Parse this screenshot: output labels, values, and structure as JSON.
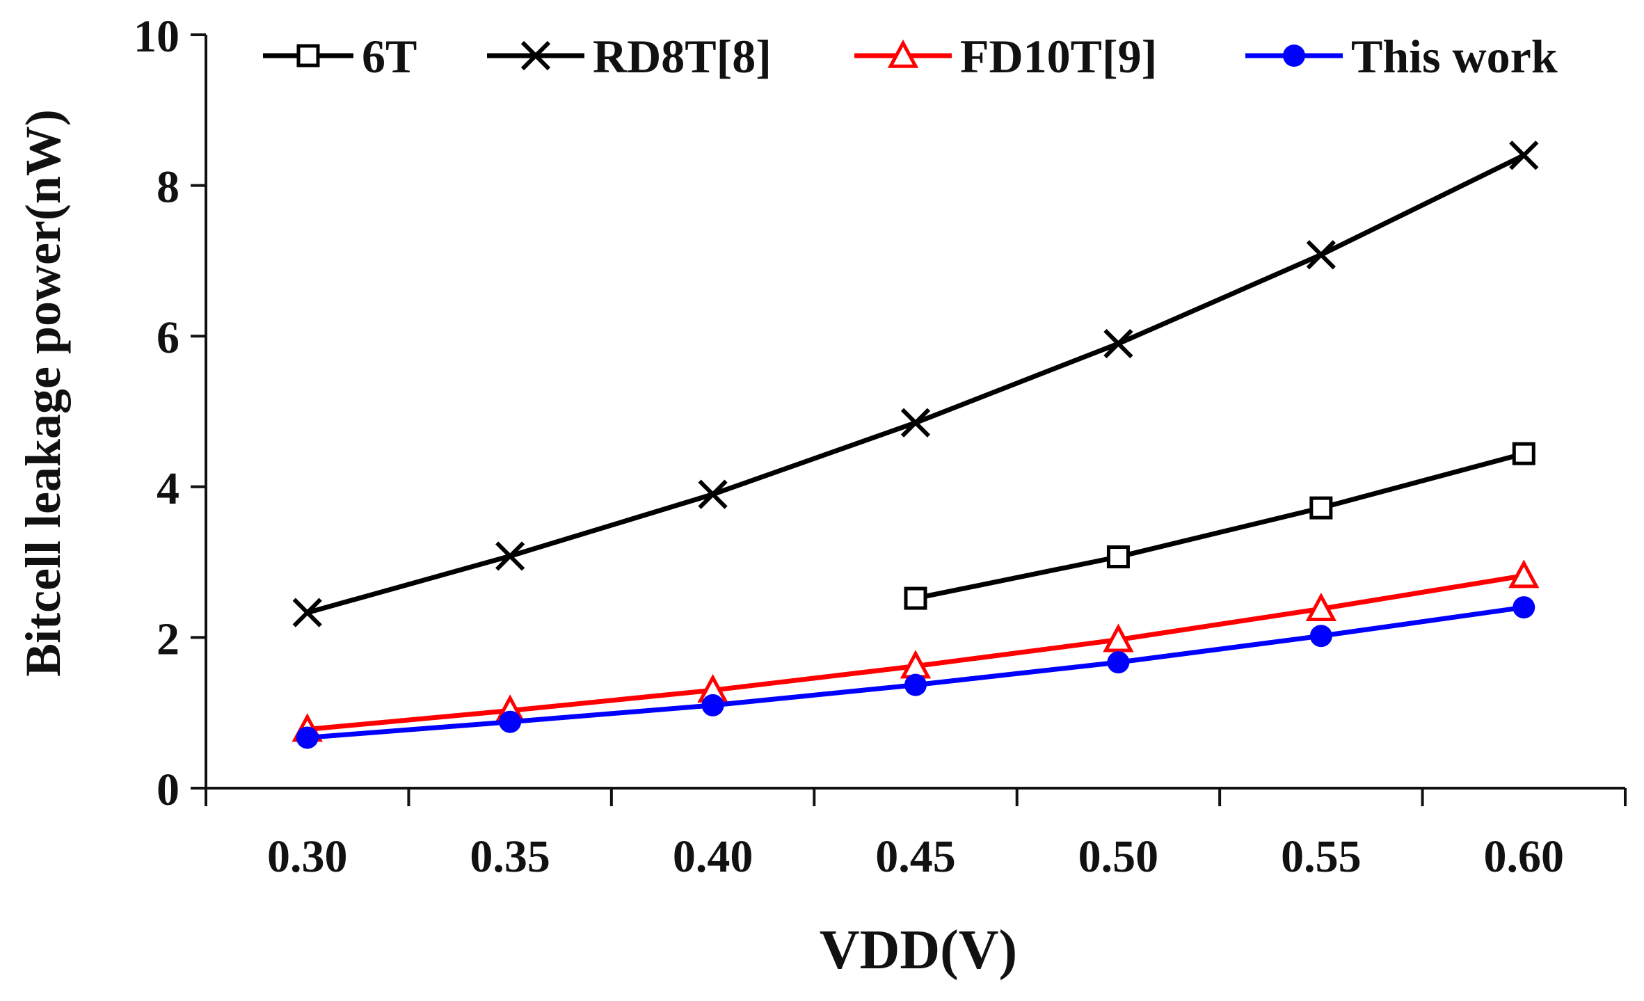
{
  "chart_data": {
    "type": "line",
    "title": "",
    "xlabel": "VDD(V)",
    "ylabel": "Bitcell leakage power(nW)",
    "x": [
      0.3,
      0.35,
      0.4,
      0.45,
      0.5,
      0.55,
      0.6
    ],
    "x_tick_labels": [
      "0.30",
      "0.35",
      "0.40",
      "0.45",
      "0.50",
      "0.55",
      "0.60"
    ],
    "xlim": [
      0.275,
      0.625
    ],
    "ylim": [
      0,
      10
    ],
    "y_ticks": [
      0,
      2,
      4,
      6,
      8,
      10
    ],
    "y_tick_labels": [
      "0",
      "2",
      "4",
      "6",
      "8",
      "10"
    ],
    "grid": false,
    "legend_position": "top",
    "series": [
      {
        "name": "6T",
        "color": "#000000",
        "marker": "open-square",
        "x": [
          0.45,
          0.5,
          0.55,
          0.6
        ],
        "values": [
          2.52,
          3.07,
          3.72,
          4.44
        ]
      },
      {
        "name": "RD8T[8]",
        "color": "#000000",
        "marker": "x-cross",
        "x": [
          0.3,
          0.35,
          0.4,
          0.45,
          0.5,
          0.55,
          0.6
        ],
        "values": [
          2.33,
          3.08,
          3.9,
          4.85,
          5.9,
          7.08,
          8.4
        ]
      },
      {
        "name": "FD10T[9]",
        "color": "#ff0000",
        "marker": "open-triangle",
        "x": [
          0.3,
          0.35,
          0.4,
          0.45,
          0.5,
          0.55,
          0.6
        ],
        "values": [
          0.78,
          1.03,
          1.3,
          1.62,
          1.97,
          2.38,
          2.82
        ]
      },
      {
        "name": "This work",
        "color": "#0000ff",
        "marker": "filled-circle",
        "x": [
          0.3,
          0.35,
          0.4,
          0.45,
          0.5,
          0.55,
          0.6
        ],
        "values": [
          0.67,
          0.88,
          1.1,
          1.37,
          1.67,
          2.02,
          2.4
        ]
      }
    ]
  }
}
